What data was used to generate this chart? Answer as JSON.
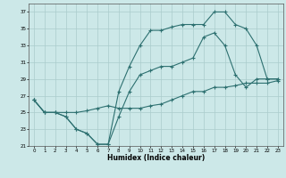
{
  "xlabel": "Humidex (Indice chaleur)",
  "ylabel": "",
  "bg_color": "#cce8e8",
  "grid_color": "#aacccc",
  "line_color": "#2d7070",
  "xlim": [
    -0.5,
    23.5
  ],
  "ylim": [
    21,
    38
  ],
  "yticks": [
    21,
    23,
    25,
    27,
    29,
    31,
    33,
    35,
    37
  ],
  "xticks": [
    0,
    1,
    2,
    3,
    4,
    5,
    6,
    7,
    8,
    9,
    10,
    11,
    12,
    13,
    14,
    15,
    16,
    17,
    18,
    19,
    20,
    21,
    22,
    23
  ],
  "line1_x": [
    0,
    1,
    2,
    3,
    4,
    5,
    6,
    7,
    8,
    9,
    10,
    11,
    12,
    13,
    14,
    15,
    16,
    17,
    18,
    19,
    20,
    21,
    22,
    23
  ],
  "line1_y": [
    26.5,
    25.0,
    25.0,
    24.5,
    23.0,
    22.5,
    21.2,
    21.2,
    24.5,
    27.5,
    29.5,
    30.0,
    30.5,
    30.5,
    31.0,
    31.5,
    34.0,
    34.5,
    33.0,
    29.5,
    28.0,
    29.0,
    29.0,
    29.0
  ],
  "line2_x": [
    0,
    1,
    2,
    3,
    4,
    5,
    6,
    7,
    8,
    9,
    10,
    11,
    12,
    13,
    14,
    15,
    16,
    17,
    18,
    19,
    20,
    21,
    22,
    23
  ],
  "line2_y": [
    26.5,
    25.0,
    25.0,
    24.5,
    23.0,
    22.5,
    21.2,
    21.2,
    27.5,
    30.5,
    33.0,
    34.8,
    34.8,
    35.2,
    35.5,
    35.5,
    35.5,
    37.0,
    37.0,
    35.5,
    35.0,
    33.0,
    29.0,
    29.0
  ],
  "line3_x": [
    0,
    1,
    2,
    3,
    4,
    5,
    6,
    7,
    8,
    9,
    10,
    11,
    12,
    13,
    14,
    15,
    16,
    17,
    18,
    19,
    20,
    21,
    22,
    23
  ],
  "line3_y": [
    26.5,
    25.0,
    25.0,
    25.0,
    25.0,
    25.2,
    25.5,
    25.8,
    25.5,
    25.5,
    25.5,
    25.8,
    26.0,
    26.5,
    27.0,
    27.5,
    27.5,
    28.0,
    28.0,
    28.2,
    28.5,
    28.5,
    28.5,
    28.8
  ]
}
